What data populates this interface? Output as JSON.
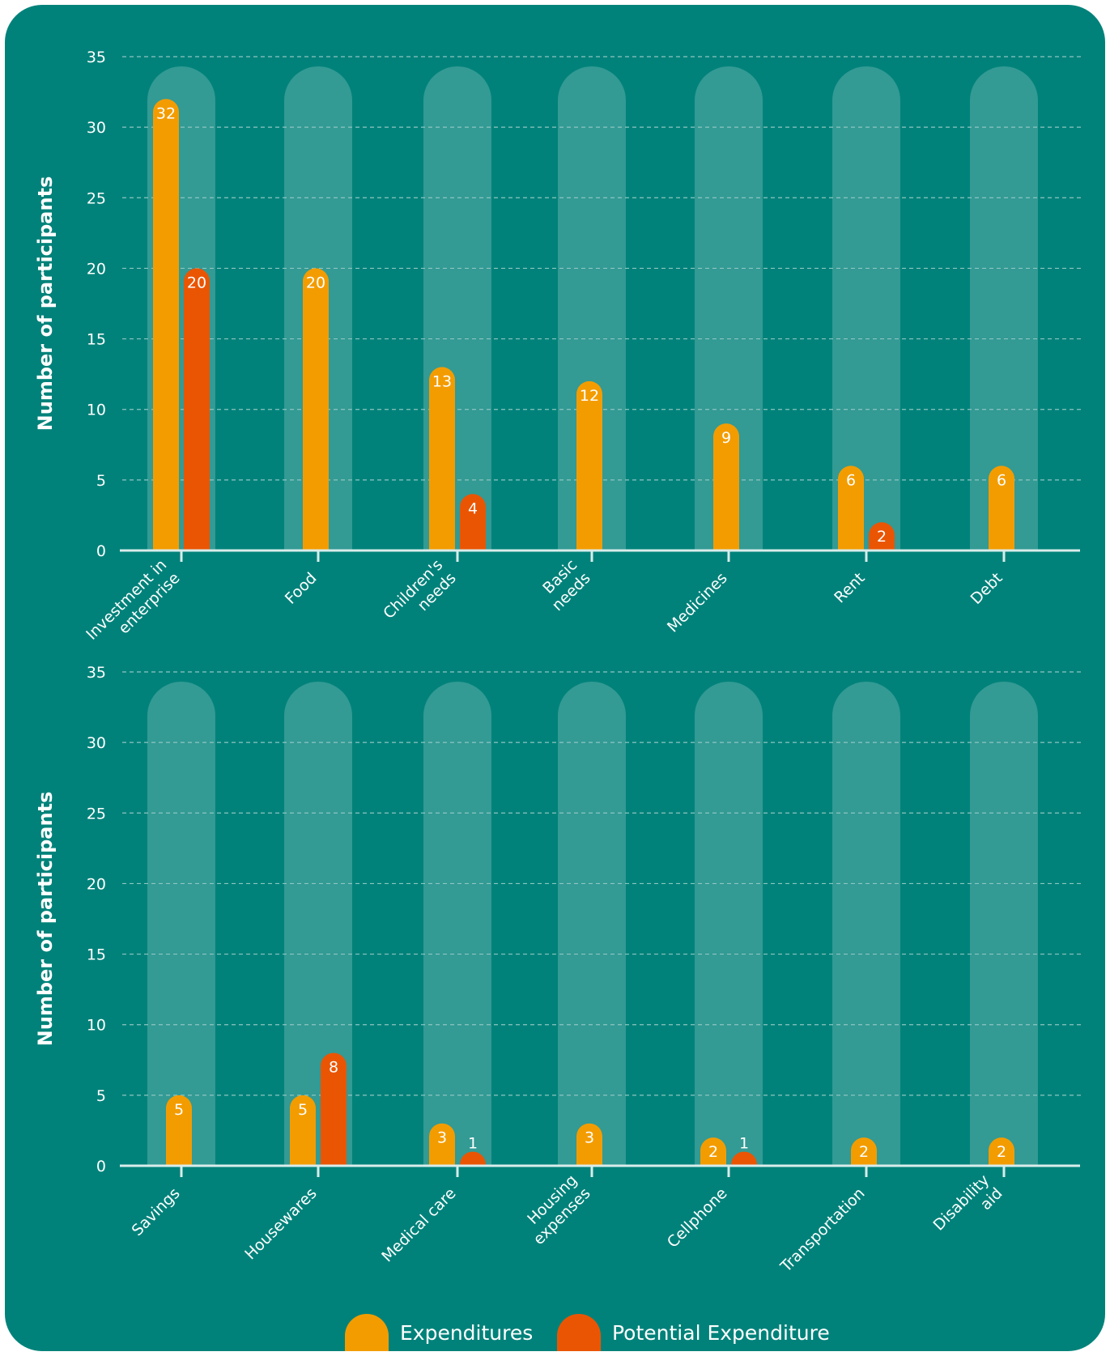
{
  "colors": {
    "background": "#00827A",
    "column_band": "#339A94",
    "gridline": "#8FC5C1",
    "axis": "#D9ECEA",
    "text": "#FFFFFF",
    "expenditures": "#F39C00",
    "potential": "#EA5504"
  },
  "legend": {
    "expenditures": "Expenditures",
    "potential": "Potential Expenditure"
  },
  "chart_data": [
    {
      "type": "bar",
      "ylabel": "Number of participants",
      "ylim": [
        0,
        35
      ],
      "yticks": [
        0,
        5,
        10,
        15,
        20,
        25,
        30,
        35
      ],
      "grid": true,
      "categories": [
        [
          "Investment in",
          "enterprise"
        ],
        [
          "Food"
        ],
        [
          "Children's",
          "needs"
        ],
        [
          "Basic",
          "needs"
        ],
        [
          "Medicines"
        ],
        [
          "Rent"
        ],
        [
          "Debt"
        ]
      ],
      "series": [
        {
          "name": "Expenditures",
          "values": [
            32,
            20,
            13,
            12,
            9,
            6,
            6
          ]
        },
        {
          "name": "Potential Expenditure",
          "values": [
            20,
            null,
            4,
            null,
            null,
            2,
            null
          ]
        }
      ]
    },
    {
      "type": "bar",
      "ylabel": "Number of participants",
      "ylim": [
        0,
        35
      ],
      "yticks": [
        0,
        5,
        10,
        15,
        20,
        25,
        30,
        35
      ],
      "grid": true,
      "categories": [
        [
          "Savings"
        ],
        [
          "Housewares"
        ],
        [
          "Medical care"
        ],
        [
          "Housing",
          "expenses"
        ],
        [
          "Cellphone"
        ],
        [
          "Transportation"
        ],
        [
          "Disability",
          "aid"
        ]
      ],
      "series": [
        {
          "name": "Expenditures",
          "values": [
            5,
            5,
            3,
            3,
            2,
            2,
            2
          ]
        },
        {
          "name": "Potential Expenditure",
          "values": [
            null,
            8,
            1,
            null,
            1,
            null,
            null
          ]
        }
      ]
    }
  ]
}
